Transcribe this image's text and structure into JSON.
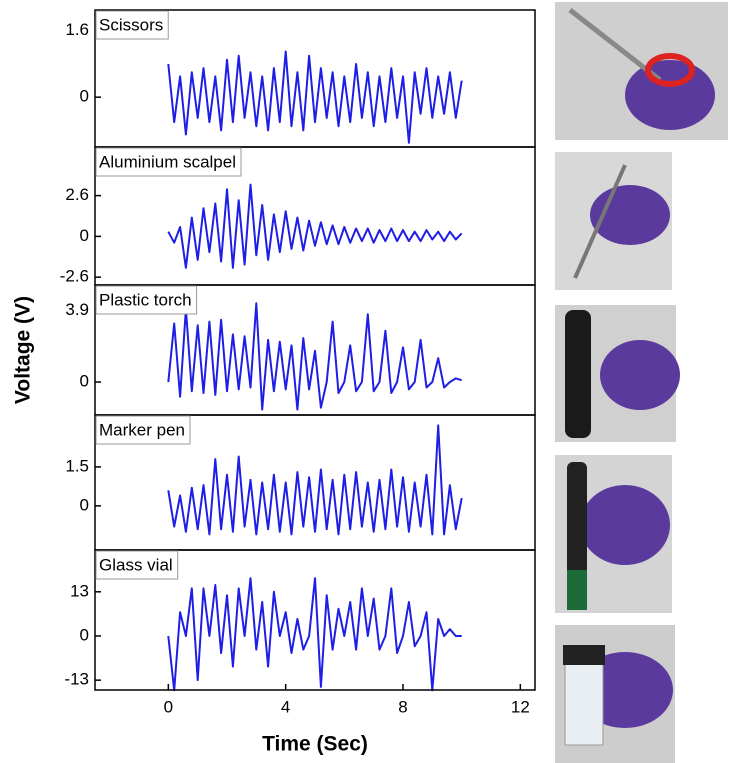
{
  "chart_data": [
    {
      "type": "line",
      "title": "Scissors",
      "color": "#1e1ee6",
      "x": [
        0,
        0.2,
        0.4,
        0.6,
        0.8,
        1,
        1.2,
        1.4,
        1.6,
        1.8,
        2,
        2.2,
        2.4,
        2.6,
        2.8,
        3,
        3.2,
        3.4,
        3.6,
        3.8,
        4,
        4.2,
        4.4,
        4.6,
        4.8,
        5,
        5.2,
        5.4,
        5.6,
        5.8,
        6,
        6.2,
        6.4,
        6.6,
        6.8,
        7,
        7.2,
        7.4,
        7.6,
        7.8,
        8,
        8.2,
        8.4,
        8.6,
        8.8,
        9,
        9.2,
        9.4,
        9.6,
        9.8,
        10
      ],
      "values": [
        0.8,
        -0.6,
        0.5,
        -0.9,
        0.6,
        -0.5,
        0.7,
        -0.6,
        0.5,
        -0.8,
        0.9,
        -0.6,
        1.0,
        -0.5,
        0.6,
        -0.7,
        0.5,
        -0.8,
        0.7,
        -0.6,
        1.1,
        -0.7,
        0.6,
        -0.8,
        1.0,
        -0.6,
        0.7,
        -0.5,
        0.6,
        -0.7,
        0.5,
        -0.6,
        0.8,
        -0.5,
        0.6,
        -0.7,
        0.5,
        -0.6,
        0.7,
        -0.5,
        0.5,
        -1.1,
        0.6,
        -0.4,
        0.7,
        -0.5,
        0.5,
        -0.4,
        0.6,
        -0.5,
        0.4
      ],
      "xlim": [
        -2.5,
        12.5
      ],
      "ylim": [
        -1.2,
        2.1
      ],
      "yticks": [
        0,
        1.6
      ]
    },
    {
      "type": "line",
      "title": "Aluminium scalpel",
      "color": "#1e1ee6",
      "x": [
        0,
        0.2,
        0.4,
        0.6,
        0.8,
        1,
        1.2,
        1.4,
        1.6,
        1.8,
        2,
        2.2,
        2.4,
        2.6,
        2.8,
        3,
        3.2,
        3.4,
        3.6,
        3.8,
        4,
        4.2,
        4.4,
        4.6,
        4.8,
        5,
        5.2,
        5.4,
        5.6,
        5.8,
        6,
        6.2,
        6.4,
        6.6,
        6.8,
        7,
        7.2,
        7.4,
        7.6,
        7.8,
        8,
        8.2,
        8.4,
        8.6,
        8.8,
        9,
        9.2,
        9.4,
        9.6,
        9.8,
        10
      ],
      "values": [
        0.3,
        -0.4,
        0.6,
        -2.0,
        1.2,
        -1.5,
        1.8,
        -1.0,
        2.1,
        -1.6,
        3.0,
        -2.0,
        2.3,
        -1.8,
        3.3,
        -1.2,
        2.0,
        -1.5,
        1.4,
        -1.0,
        1.6,
        -0.8,
        1.2,
        -0.9,
        1.0,
        -0.6,
        0.9,
        -0.5,
        0.7,
        -0.5,
        0.6,
        -0.4,
        0.5,
        -0.3,
        0.5,
        -0.4,
        0.4,
        -0.3,
        0.5,
        -0.3,
        0.4,
        -0.3,
        0.3,
        -0.3,
        0.4,
        -0.2,
        0.3,
        -0.3,
        0.3,
        -0.2,
        0.2
      ],
      "xlim": [
        -2.5,
        12.5
      ],
      "ylim": [
        -3.1,
        5.7
      ],
      "yticks": [
        -2.6,
        0,
        2.6
      ]
    },
    {
      "type": "line",
      "title": "Plastic torch",
      "color": "#1e1ee6",
      "ylabel": "Voltage (V)",
      "x": [
        0,
        0.2,
        0.4,
        0.6,
        0.8,
        1,
        1.2,
        1.4,
        1.6,
        1.8,
        2,
        2.2,
        2.4,
        2.6,
        2.8,
        3,
        3.2,
        3.4,
        3.6,
        3.8,
        4,
        4.2,
        4.4,
        4.6,
        4.8,
        5,
        5.2,
        5.4,
        5.6,
        5.8,
        6,
        6.2,
        6.4,
        6.6,
        6.8,
        7,
        7.2,
        7.4,
        7.6,
        7.8,
        8,
        8.2,
        8.4,
        8.6,
        8.8,
        9,
        9.2,
        9.4,
        9.6,
        9.8,
        10
      ],
      "values": [
        0,
        3.2,
        -0.8,
        4.0,
        -0.5,
        3.1,
        -0.6,
        3.3,
        -0.7,
        3.4,
        -0.5,
        2.6,
        -0.4,
        2.5,
        -0.3,
        4.3,
        -1.5,
        2.3,
        -0.5,
        2.2,
        -0.4,
        2.0,
        -1.5,
        2.4,
        -0.4,
        1.7,
        -1.4,
        0,
        3.3,
        -0.6,
        0,
        2.0,
        -0.5,
        0,
        3.7,
        -0.5,
        0,
        2.8,
        -0.6,
        0,
        1.9,
        -0.4,
        0,
        2.3,
        -0.3,
        0,
        1.3,
        -0.3,
        0,
        0.2,
        0.1
      ],
      "xlim": [
        -2.5,
        12.5
      ],
      "ylim": [
        -1.8,
        5.3
      ],
      "yticks": [
        0,
        3.9
      ]
    },
    {
      "type": "line",
      "title": "Marker pen",
      "color": "#1e1ee6",
      "x": [
        0,
        0.2,
        0.4,
        0.6,
        0.8,
        1,
        1.2,
        1.4,
        1.6,
        1.8,
        2,
        2.2,
        2.4,
        2.6,
        2.8,
        3,
        3.2,
        3.4,
        3.6,
        3.8,
        4,
        4.2,
        4.4,
        4.6,
        4.8,
        5,
        5.2,
        5.4,
        5.6,
        5.8,
        6,
        6.2,
        6.4,
        6.6,
        6.8,
        7,
        7.2,
        7.4,
        7.6,
        7.8,
        8,
        8.2,
        8.4,
        8.6,
        8.8,
        9,
        9.2,
        9.4,
        9.6,
        9.8,
        10
      ],
      "values": [
        0.6,
        -0.8,
        0.4,
        -1.0,
        0.7,
        -0.9,
        0.8,
        -1.1,
        1.8,
        -0.9,
        1.2,
        -1.0,
        1.9,
        -0.8,
        1.0,
        -1.1,
        0.9,
        -0.9,
        1.2,
        -1.0,
        0.9,
        -1.1,
        1.3,
        -0.8,
        1.1,
        -1.0,
        1.4,
        -0.9,
        1.0,
        -1.1,
        1.2,
        -0.9,
        1.3,
        -0.8,
        0.9,
        -1.0,
        1.0,
        -0.9,
        1.4,
        -0.8,
        1.1,
        -1.0,
        0.9,
        -0.8,
        1.2,
        -1.1,
        3.1,
        -1.1,
        0.8,
        -0.9,
        0.3
      ],
      "xlim": [
        -2.5,
        12.5
      ],
      "ylim": [
        -1.7,
        3.5
      ],
      "yticks": [
        0,
        1.5
      ]
    },
    {
      "type": "line",
      "title": "Glass vial",
      "color": "#1e1ee6",
      "xlabel": "Time (Sec)",
      "x": [
        0,
        0.2,
        0.4,
        0.6,
        0.8,
        1,
        1.2,
        1.4,
        1.6,
        1.8,
        2,
        2.2,
        2.4,
        2.6,
        2.8,
        3,
        3.2,
        3.4,
        3.6,
        3.8,
        4,
        4.2,
        4.4,
        4.6,
        4.8,
        5,
        5.2,
        5.4,
        5.6,
        5.8,
        6,
        6.2,
        6.4,
        6.6,
        6.8,
        7,
        7.2,
        7.4,
        7.6,
        7.8,
        8,
        8.2,
        8.4,
        8.6,
        8.8,
        9,
        9.2,
        9.4,
        9.6,
        9.8,
        10
      ],
      "values": [
        0,
        -16,
        7,
        0,
        14,
        -13,
        14,
        0,
        15,
        -5,
        12,
        -9,
        14,
        0,
        17,
        -4,
        10,
        -9,
        13,
        0,
        7,
        -5,
        5,
        -4,
        0,
        17,
        -15,
        12,
        -4,
        8,
        0,
        10,
        -4,
        14,
        0,
        11,
        -4,
        0,
        14,
        -5,
        0,
        10,
        -3,
        0,
        7,
        -16,
        5,
        0,
        2,
        0,
        0
      ],
      "xlim": [
        -2.5,
        12.5
      ],
      "ylim": [
        -15.9,
        25.3
      ],
      "yticks": [
        -13,
        0,
        13
      ],
      "xticks": [
        0,
        4,
        8,
        12
      ]
    }
  ]
}
